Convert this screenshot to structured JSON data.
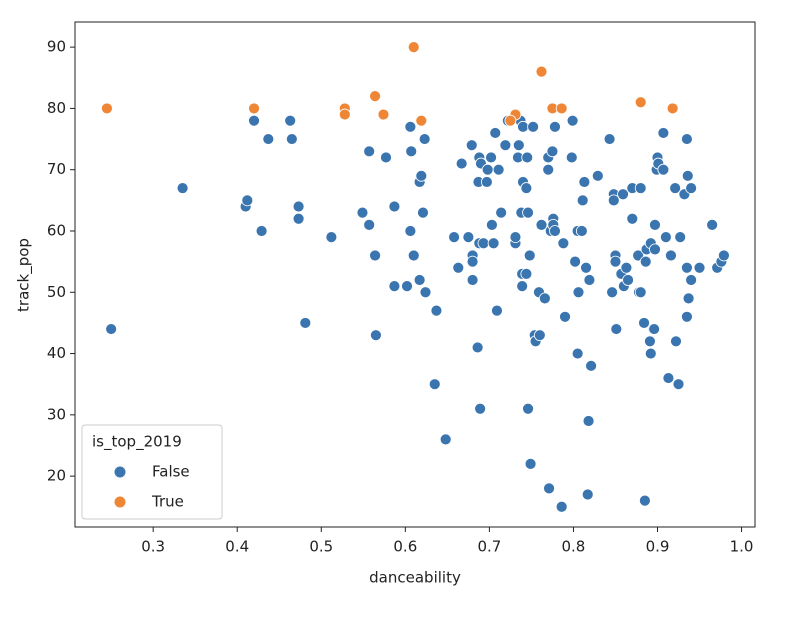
{
  "chart_data": {
    "type": "scatter",
    "x_label": "danceability",
    "y_label": "track_pop",
    "legend_title": "is_top_2019",
    "legend_position": "lower left",
    "xlim": [
      0.207,
      1.016
    ],
    "ylim": [
      11.7,
      94.1
    ],
    "xticks": [
      0.3,
      0.4,
      0.5,
      0.6,
      0.7,
      0.8,
      0.9,
      {
        "value": 1,
        "label": "1.0"
      }
    ],
    "yticks": [
      20,
      30,
      40,
      50,
      60,
      70,
      80,
      90
    ],
    "series": [
      {
        "name": "False",
        "color": "#3b75af",
        "x": [
          0.25,
          0.335,
          0.41,
          0.412,
          0.429,
          0.42,
          0.437,
          0.463,
          0.465,
          0.473,
          0.473,
          0.481,
          0.512,
          0.549,
          0.557,
          0.557,
          0.564,
          0.565,
          0.577,
          0.587,
          0.587,
          0.602,
          0.606,
          0.607,
          0.606,
          0.61,
          0.617,
          0.619,
          0.617,
          0.621,
          0.624,
          0.623,
          0.637,
          0.635,
          0.648,
          0.658,
          0.663,
          0.667,
          0.675,
          0.679,
          0.68,
          0.68,
          0.68,
          0.686,
          0.688,
          0.687,
          0.688,
          0.69,
          0.689,
          0.693,
          0.697,
          0.698,
          0.702,
          0.703,
          0.705,
          0.707,
          0.711,
          0.709,
          0.714,
          0.719,
          0.722,
          0.731,
          0.731,
          0.734,
          0.735,
          0.737,
          0.738,
          0.739,
          0.739,
          0.74,
          0.74,
          0.744,
          0.745,
          0.744,
          0.746,
          0.746,
          0.748,
          0.749,
          0.752,
          0.754,
          0.755,
          0.76,
          0.759,
          0.762,
          0.766,
          0.77,
          0.77,
          0.771,
          0.773,
          0.775,
          0.776,
          0.776,
          0.778,
          0.778,
          0.788,
          0.79,
          0.786,
          0.799,
          0.798,
          0.802,
          0.805,
          0.805,
          0.806,
          0.81,
          0.811,
          0.813,
          0.815,
          0.817,
          0.818,
          0.819,
          0.821,
          0.829,
          0.843,
          0.846,
          0.848,
          0.848,
          0.85,
          0.85,
          0.851,
          0.857,
          0.859,
          0.86,
          0.863,
          0.865,
          0.87,
          0.87,
          0.877,
          0.88,
          0.878,
          0.88,
          0.884,
          0.885,
          0.886,
          0.887,
          0.891,
          0.892,
          0.892,
          0.895,
          0.897,
          0.897,
          0.896,
          0.899,
          0.9,
          0.901,
          0.907,
          0.907,
          0.91,
          0.913,
          0.916,
          0.921,
          0.922,
          0.925,
          0.927,
          0.932,
          0.935,
          0.935,
          0.936,
          0.935,
          0.937,
          0.94,
          0.94,
          0.95,
          0.965,
          0.971,
          0.976,
          0.979
        ],
        "values": [
          44,
          67,
          64,
          65,
          60,
          78,
          75,
          78,
          75,
          64,
          62,
          45,
          59,
          63,
          73,
          61,
          56,
          43,
          72,
          64,
          51,
          51,
          77,
          73,
          60,
          56,
          68,
          69,
          52,
          63,
          50,
          75,
          47,
          35,
          26,
          59,
          54,
          71,
          59,
          74,
          56,
          55,
          52,
          41,
          72,
          68,
          58,
          71,
          31,
          58,
          68,
          70,
          72,
          61,
          58,
          76,
          70,
          47,
          63,
          74,
          78,
          58,
          59,
          72,
          74,
          78,
          63,
          53,
          51,
          68,
          77,
          67,
          72,
          53,
          63,
          31,
          56,
          22,
          77,
          43,
          42,
          43,
          50,
          61,
          49,
          70,
          72,
          18,
          60,
          73,
          62,
          61,
          77,
          60,
          58,
          46,
          15,
          78,
          72,
          55,
          60,
          40,
          50,
          60,
          65,
          68,
          54,
          17,
          29,
          52,
          38,
          69,
          75,
          50,
          66,
          65,
          56,
          55,
          44,
          53,
          66,
          51,
          54,
          52,
          67,
          62,
          56,
          67,
          50,
          50,
          45,
          16,
          55,
          57,
          42,
          58,
          40,
          44,
          57,
          61,
          44,
          70,
          72,
          71,
          70,
          76,
          59,
          36,
          56,
          67,
          42,
          35,
          59,
          66,
          54,
          46,
          69,
          75,
          49,
          67,
          52,
          54,
          61,
          54,
          55,
          56
        ]
      },
      {
        "name": "True",
        "color": "#ef8636",
        "x": [
          0.245,
          0.42,
          0.564,
          0.528,
          0.528,
          0.574,
          0.61,
          0.619,
          0.731,
          0.725,
          0.762,
          0.775,
          0.786,
          0.88,
          0.918
        ],
        "values": [
          80,
          80,
          82,
          80,
          79,
          79,
          90,
          78,
          79,
          78,
          86,
          80,
          80,
          81,
          80
        ]
      }
    ]
  }
}
